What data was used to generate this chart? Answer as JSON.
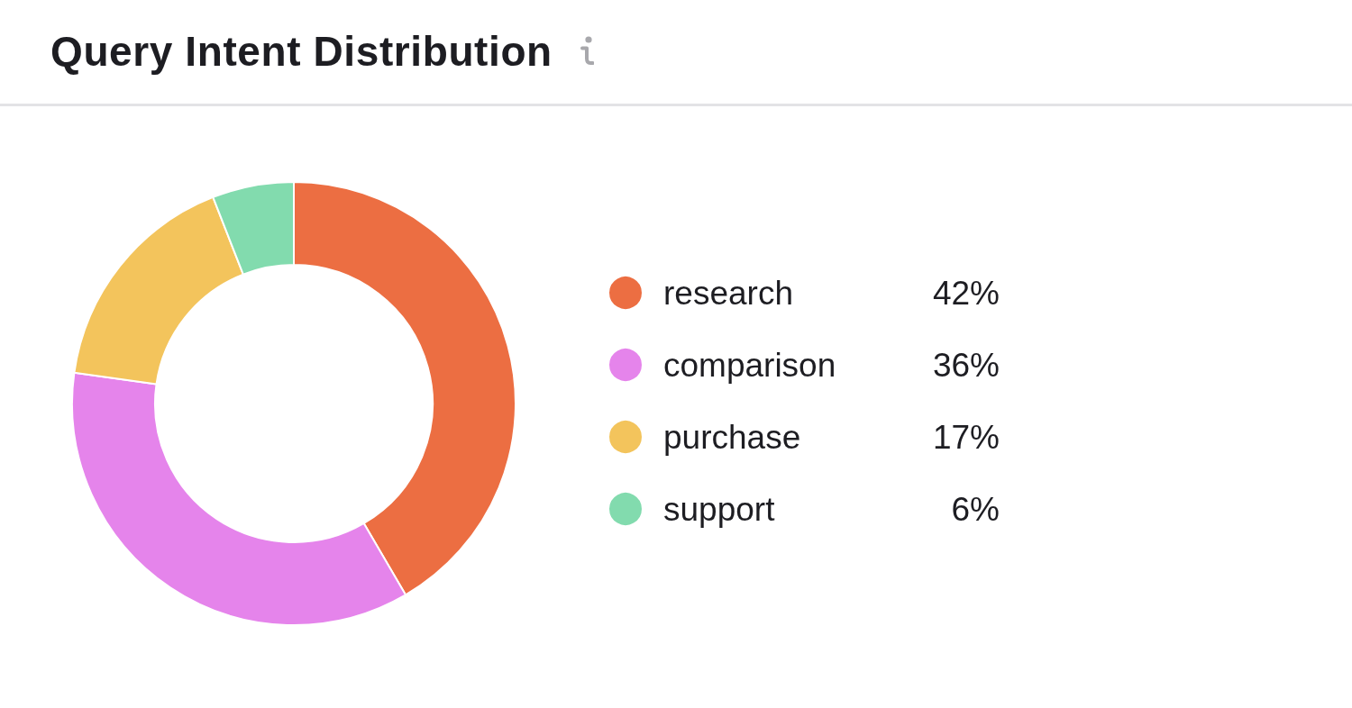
{
  "chart_data": {
    "type": "donut",
    "title": "Query Intent Distribution",
    "categories": [
      "research",
      "comparison",
      "purchase",
      "support"
    ],
    "values": [
      42,
      36,
      17,
      6
    ],
    "colors": [
      "#ec6e42",
      "#e584eb",
      "#f3c45c",
      "#82dbae"
    ],
    "value_labels": [
      "42%",
      "36%",
      "17%",
      "6%"
    ],
    "legend": "right"
  }
}
